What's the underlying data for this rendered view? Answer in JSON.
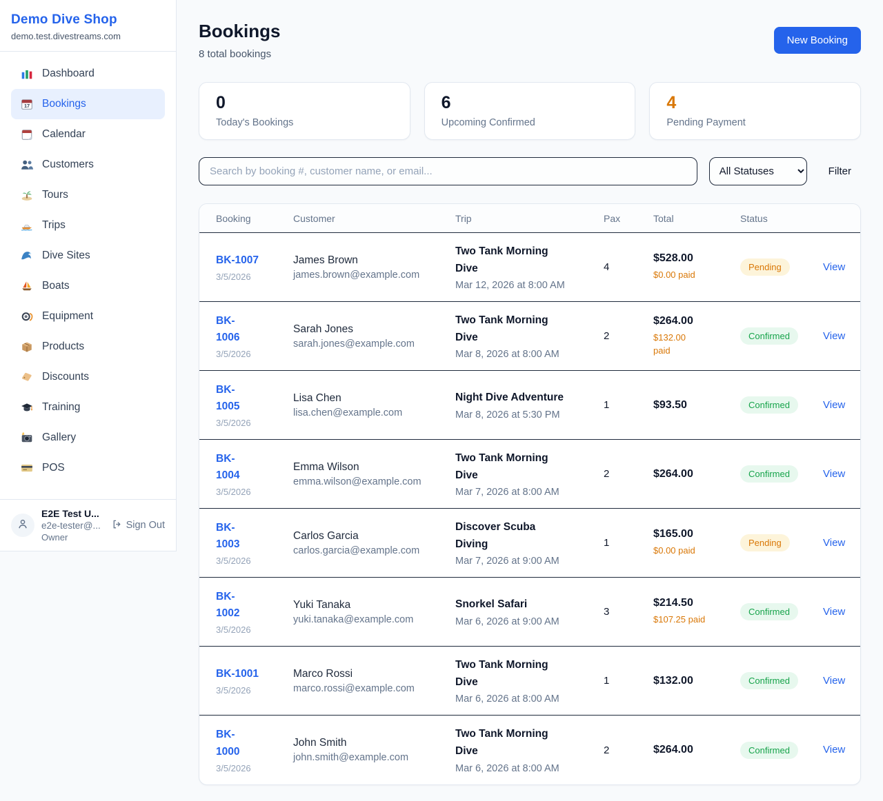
{
  "colors": {
    "accent_blue": "#2563eb",
    "pending_text": "#d97706",
    "pending_bg": "#fdf4da",
    "confirmed_text": "#16a34a",
    "confirmed_bg": "#e7f8ee",
    "page_bg": "#f8fafc"
  },
  "sidebar": {
    "brand": "Demo Dive Shop",
    "domain": "demo.test.divestreams.com",
    "items": [
      {
        "label": "Dashboard",
        "icon": "dashboard-chart",
        "active": false
      },
      {
        "label": "Bookings",
        "icon": "bookings-calendar",
        "active": true
      },
      {
        "label": "Calendar",
        "icon": "calendar",
        "active": false
      },
      {
        "label": "Customers",
        "icon": "customers-people",
        "active": false
      },
      {
        "label": "Tours",
        "icon": "island",
        "active": false
      },
      {
        "label": "Trips",
        "icon": "speedboat",
        "active": false
      },
      {
        "label": "Dive Sites",
        "icon": "wave",
        "active": false
      },
      {
        "label": "Boats",
        "icon": "sailboat",
        "active": false
      },
      {
        "label": "Equipment",
        "icon": "dive-mask",
        "active": false
      },
      {
        "label": "Products",
        "icon": "package-box",
        "active": false
      },
      {
        "label": "Discounts",
        "icon": "price-tag",
        "active": false
      },
      {
        "label": "Training",
        "icon": "graduation-cap",
        "active": false
      },
      {
        "label": "Gallery",
        "icon": "camera",
        "active": false
      },
      {
        "label": "POS",
        "icon": "credit-card",
        "active": false
      }
    ],
    "user": {
      "name": "E2E Test U...",
      "email": "e2e-tester@...",
      "role": "Owner",
      "sign_out_label": "Sign Out"
    }
  },
  "header": {
    "title": "Bookings",
    "subtitle": "8 total bookings",
    "new_booking_label": "New Booking"
  },
  "stats": [
    {
      "value": "0",
      "label": "Today's Bookings"
    },
    {
      "value": "6",
      "label": "Upcoming Confirmed"
    },
    {
      "value": "4",
      "label": "Pending Payment"
    }
  ],
  "toolbar": {
    "search_placeholder": "Search by booking #, customer name, or email...",
    "status_filter_value": "All Statuses",
    "filter_label": "Filter"
  },
  "table": {
    "columns": [
      "Booking",
      "Customer",
      "Trip",
      "Pax",
      "Total",
      "Status"
    ],
    "view_label": "View",
    "rows": [
      {
        "id": "BK-1007",
        "id_wrap": false,
        "date": "3/5/2026",
        "customer": "James Brown",
        "email": "james.brown@example.com",
        "trip": "Two Tank Morning Dive",
        "trip_wrap": true,
        "trip_datetime": "Mar 12, 2026 at 8:00 AM",
        "pax": "4",
        "total": "$528.00",
        "paid": "$0.00 paid",
        "paid_wrap": false,
        "status": "Pending"
      },
      {
        "id": "BK-1006",
        "id_wrap": true,
        "date": "3/5/2026",
        "customer": "Sarah Jones",
        "email": "sarah.jones@example.com",
        "trip": "Two Tank Morning Dive",
        "trip_wrap": true,
        "trip_datetime": "Mar 8, 2026 at 8:00 AM",
        "pax": "2",
        "total": "$264.00",
        "paid": "$132.00 paid",
        "paid_wrap": true,
        "status": "Confirmed"
      },
      {
        "id": "BK-1005",
        "id_wrap": true,
        "date": "3/5/2026",
        "customer": "Lisa Chen",
        "email": "lisa.chen@example.com",
        "trip": "Night Dive Adventure",
        "trip_wrap": false,
        "trip_datetime": "Mar 8, 2026 at 5:30 PM",
        "pax": "1",
        "total": "$93.50",
        "paid": null,
        "paid_wrap": false,
        "status": "Confirmed"
      },
      {
        "id": "BK-1004",
        "id_wrap": true,
        "date": "3/5/2026",
        "customer": "Emma Wilson",
        "email": "emma.wilson@example.com",
        "trip": "Two Tank Morning Dive",
        "trip_wrap": true,
        "trip_datetime": "Mar 7, 2026 at 8:00 AM",
        "pax": "2",
        "total": "$264.00",
        "paid": null,
        "paid_wrap": false,
        "status": "Confirmed"
      },
      {
        "id": "BK-1003",
        "id_wrap": true,
        "date": "3/5/2026",
        "customer": "Carlos Garcia",
        "email": "carlos.garcia@example.com",
        "trip": "Discover Scuba Diving",
        "trip_wrap": true,
        "trip_datetime": "Mar 7, 2026 at 9:00 AM",
        "pax": "1",
        "total": "$165.00",
        "paid": "$0.00 paid",
        "paid_wrap": false,
        "status": "Pending"
      },
      {
        "id": "BK-1002",
        "id_wrap": true,
        "date": "3/5/2026",
        "customer": "Yuki Tanaka",
        "email": "yuki.tanaka@example.com",
        "trip": "Snorkel Safari",
        "trip_wrap": false,
        "trip_datetime": "Mar 6, 2026 at 9:00 AM",
        "pax": "3",
        "total": "$214.50",
        "paid": "$107.25 paid",
        "paid_wrap": false,
        "status": "Confirmed"
      },
      {
        "id": "BK-1001",
        "id_wrap": false,
        "date": "3/5/2026",
        "customer": "Marco Rossi",
        "email": "marco.rossi@example.com",
        "trip": "Two Tank Morning Dive",
        "trip_wrap": true,
        "trip_datetime": "Mar 6, 2026 at 8:00 AM",
        "pax": "1",
        "total": "$132.00",
        "paid": null,
        "paid_wrap": false,
        "status": "Confirmed"
      },
      {
        "id": "BK-1000",
        "id_wrap": true,
        "date": "3/5/2026",
        "customer": "John Smith",
        "email": "john.smith@example.com",
        "trip": "Two Tank Morning Dive",
        "trip_wrap": true,
        "trip_datetime": "Mar 6, 2026 at 8:00 AM",
        "pax": "2",
        "total": "$264.00",
        "paid": null,
        "paid_wrap": false,
        "status": "Confirmed"
      }
    ]
  }
}
